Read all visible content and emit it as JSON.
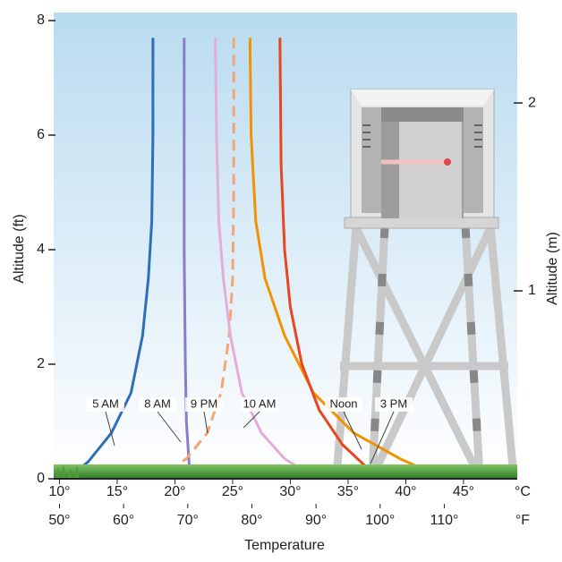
{
  "chart_data": {
    "type": "line",
    "x_label": "Temperature",
    "y_label": "Altitude (ft)",
    "y2_label": "Altitude (m)",
    "x_unit": "°C",
    "x2_unit": "°F",
    "xlim": [
      9.5,
      49.5
    ],
    "xticks": [
      {
        "value": 10,
        "label": "10°"
      },
      {
        "value": 15,
        "label": "15°"
      },
      {
        "value": 20,
        "label": "20°"
      },
      {
        "value": 25,
        "label": "25°"
      },
      {
        "value": 30,
        "label": "30°"
      },
      {
        "value": 35,
        "label": "35°"
      },
      {
        "value": 40,
        "label": "40°"
      },
      {
        "value": 45,
        "label": "45°"
      }
    ],
    "x2lim": [
      49.1,
      121.1
    ],
    "x2ticks": [
      {
        "value": 50,
        "label": "50°"
      },
      {
        "value": 60,
        "label": "60°"
      },
      {
        "value": 70,
        "label": "70°"
      },
      {
        "value": 80,
        "label": "80°"
      },
      {
        "value": 90,
        "label": "90°"
      },
      {
        "value": 100,
        "label": "100°"
      },
      {
        "value": 110,
        "label": "110°"
      }
    ],
    "ylim": [
      0,
      8
    ],
    "yticks": [
      0,
      2,
      4,
      6,
      8
    ],
    "y2lim": [
      0,
      2.4384
    ],
    "y2ticks": [
      1,
      2
    ],
    "series": [
      {
        "name": "5 AM",
        "color": "#2f6fb8",
        "dashed": false,
        "x": [
          18.1,
          18.1,
          18.0,
          17.7,
          17.2,
          16.2,
          14.5,
          12.5,
          11.0
        ],
        "y": [
          7.7,
          6,
          4.5,
          3.5,
          2.5,
          1.5,
          0.8,
          0.3,
          0.05
        ]
      },
      {
        "name": "8 AM",
        "color": "#8b7cc9",
        "dashed": false,
        "x": [
          20.8,
          20.8,
          20.9,
          21.0,
          21.3
        ],
        "y": [
          7.7,
          4,
          2,
          1,
          0.05
        ]
      },
      {
        "name": "9 PM",
        "color": "#f2a676",
        "dashed": true,
        "x": [
          25.1,
          25.1,
          25.0,
          24.7,
          24.0,
          22.8,
          21.0,
          18.8
        ],
        "y": [
          7.7,
          5,
          3.5,
          2.5,
          1.5,
          0.8,
          0.35,
          0.05
        ]
      },
      {
        "name": "10 AM",
        "color": "#e4add9",
        "dashed": false,
        "x": [
          23.5,
          23.6,
          23.8,
          24.2,
          24.8,
          25.8,
          27.5,
          29.5,
          31.9
        ],
        "y": [
          7.7,
          6,
          4.5,
          3.5,
          2.5,
          1.5,
          0.8,
          0.35,
          0.05
        ]
      },
      {
        "name": "Noon",
        "color": "#f39200",
        "dashed": false,
        "x": [
          26.5,
          26.6,
          27.0,
          27.8,
          29.5,
          32.0,
          35.5,
          39.5,
          42.8
        ],
        "y": [
          7.7,
          6,
          4.5,
          3.5,
          2.5,
          1.5,
          0.8,
          0.35,
          0.05
        ]
      },
      {
        "name": "3 PM",
        "color": "#e8461e",
        "dashed": false,
        "x": [
          29.1,
          29.2,
          29.5,
          30.0,
          31.0,
          32.5,
          34.5,
          37.4
        ],
        "y": [
          7.7,
          5.5,
          4,
          3,
          2,
          1.2,
          0.6,
          0.05
        ]
      }
    ]
  }
}
